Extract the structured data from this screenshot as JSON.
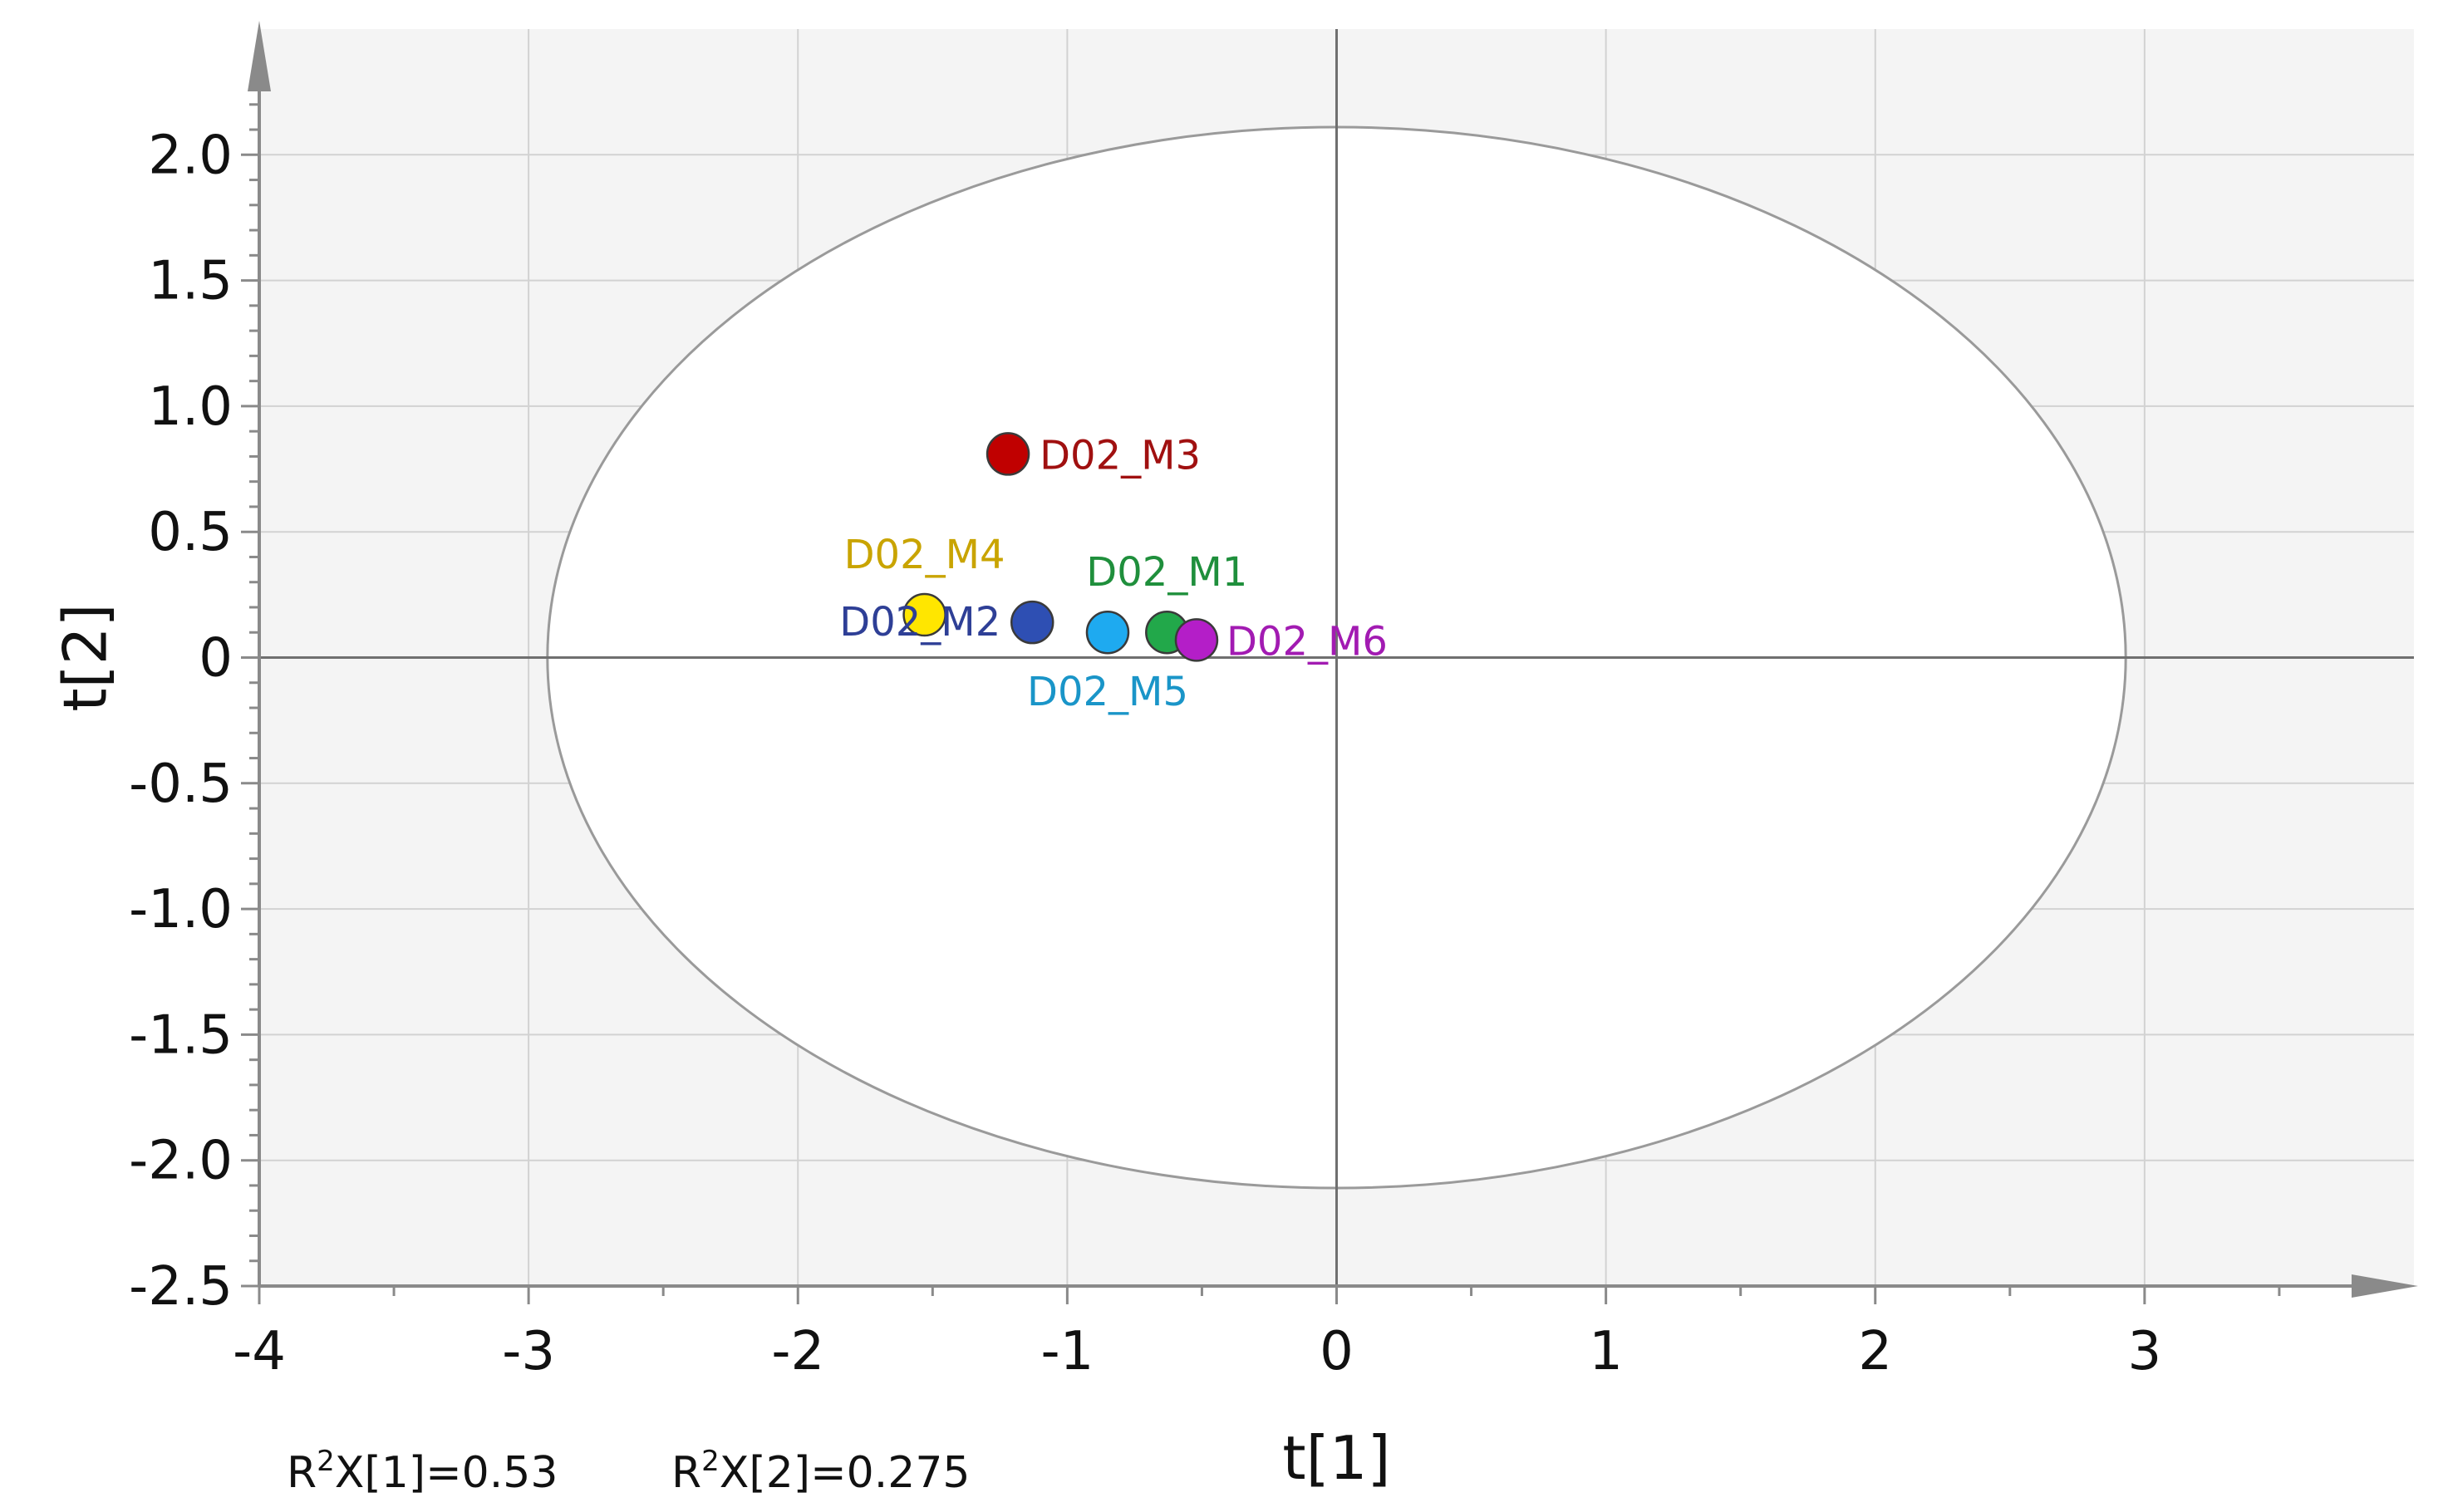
{
  "chart_data": {
    "type": "scatter",
    "title": "",
    "xlabel": "t[1]",
    "ylabel": "t[2]",
    "xlim": [
      -4,
      4
    ],
    "ylim": [
      -2.5,
      2.5
    ],
    "x_ticks": [
      -4,
      -3,
      -2,
      -1,
      0,
      1,
      2,
      3
    ],
    "x_tick_labels": [
      "-4",
      "-3",
      "-2",
      "-1",
      "0",
      "1",
      "2",
      "3"
    ],
    "y_ticks": [
      2.0,
      1.5,
      1.0,
      0.5,
      0,
      -0.5,
      -1.0,
      -1.5,
      -2.0,
      -2.5
    ],
    "y_tick_labels": [
      "2.0",
      "1.5",
      "1.0",
      "0.5",
      "0",
      "-0.5",
      "-1.0",
      "-1.5",
      "-2.0",
      "-2.5"
    ],
    "grid": true,
    "ellipse": {
      "center": [
        0,
        0
      ],
      "radius_x": 2.93,
      "radius_y": 2.11
    },
    "points": [
      {
        "label": "D02_M3",
        "x": -1.22,
        "y": 0.81,
        "color": "#c00000",
        "text_color": "#a01010"
      },
      {
        "label": "D02_M4",
        "x": -1.53,
        "y": 0.17,
        "color": "#ffe600",
        "text_color": "#c9a400"
      },
      {
        "label": "D02_M2",
        "x": -1.13,
        "y": 0.14,
        "color": "#2e4fb3",
        "text_color": "#2e3f96"
      },
      {
        "label": "D02_M5",
        "x": -0.85,
        "y": 0.1,
        "color": "#1eaaf0",
        "text_color": "#1a95c8"
      },
      {
        "label": "D02_M1",
        "x": -0.63,
        "y": 0.1,
        "color": "#22a84a",
        "text_color": "#1f8f3c"
      },
      {
        "label": "D02_M6",
        "x": -0.52,
        "y": 0.07,
        "color": "#b41ec8",
        "text_color": "#a21bb2"
      }
    ],
    "annotations": [
      {
        "base": "R",
        "sup": "2",
        "rest": "X[1]=0.53"
      },
      {
        "base": "R",
        "sup": "2",
        "rest": "X[2]=0.275"
      }
    ]
  }
}
